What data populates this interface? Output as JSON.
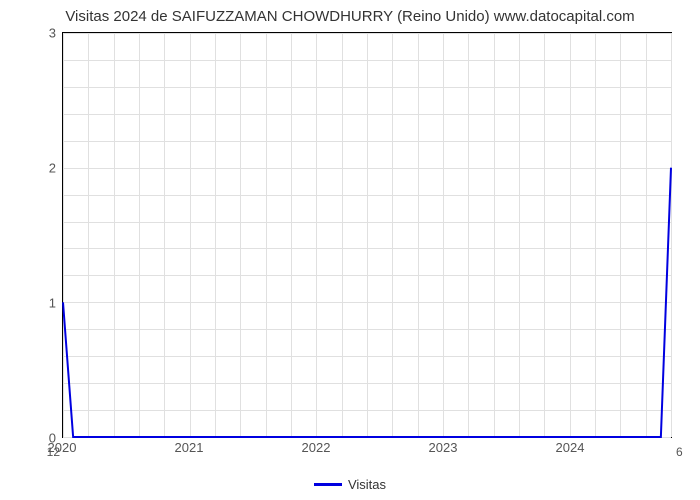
{
  "chart": {
    "type": "line",
    "title": "Visitas 2024 de SAIFUZZAMAN CHOWDHURRY (Reino Unido) www.datocapital.com",
    "title_fontsize": 15,
    "title_color": "#333333",
    "background_color": "#ffffff",
    "plot_border_color": "#000000",
    "grid_color": "#e0e0e0",
    "x_axis": {
      "range_min": 2020,
      "range_max": 2024.8,
      "major_ticks": [
        2020,
        2021,
        2022,
        2023,
        2024
      ],
      "minor_step": 0.2,
      "label_fontsize": 13,
      "label_color": "#555555"
    },
    "y_axis_left": {
      "range_min": 0,
      "range_max": 3,
      "ticks": [
        0,
        1,
        2,
        3
      ],
      "minor_step": 0.2,
      "label_fontsize": 13,
      "label_color": "#555555",
      "extra_label": "12"
    },
    "y_axis_right": {
      "extra_label": "6"
    },
    "series": [
      {
        "name": "Visitas",
        "color": "#0000e0",
        "line_width": 2,
        "points": [
          {
            "x": 2020,
            "y": 1
          },
          {
            "x": 2020.08,
            "y": 0
          },
          {
            "x": 2024.72,
            "y": 0
          },
          {
            "x": 2024.8,
            "y": 2
          }
        ]
      }
    ],
    "legend": {
      "position": "bottom-center",
      "items": [
        {
          "label": "Visitas",
          "color": "#0000e0"
        }
      ],
      "fontsize": 13
    }
  }
}
